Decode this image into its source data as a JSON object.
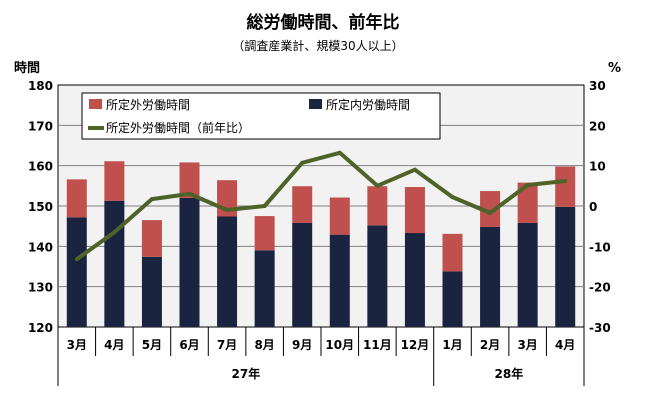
{
  "chart_data": {
    "type": "bar",
    "title": "総労働時間、前年比",
    "subtitle": "（調査産業計、規模30人以上）",
    "ylabel_left": "時間",
    "ylabel_right": "%",
    "ylim_left": [
      120,
      180
    ],
    "yticks_left": [
      "120",
      "130",
      "140",
      "150",
      "160",
      "170",
      "180"
    ],
    "ylim_right": [
      -30,
      30
    ],
    "yticks_right": [
      "-30",
      "-20",
      "-10",
      "0",
      "10",
      "20",
      "30"
    ],
    "grid": true,
    "legend_position": "top",
    "categories": [
      "3月",
      "4月",
      "5月",
      "6月",
      "7月",
      "8月",
      "9月",
      "10月",
      "11月",
      "12月",
      "1月",
      "2月",
      "3月",
      "4月"
    ],
    "year_groups": [
      {
        "label": "27年",
        "count": 10
      },
      {
        "label": "28年",
        "count": 4
      }
    ],
    "series": [
      {
        "name": "所定内労働時間",
        "kind": "bar-stacked-base",
        "color": "#1a2440",
        "values": [
          147.2,
          151.3,
          137.4,
          152.0,
          147.4,
          139.0,
          145.8,
          142.9,
          145.2,
          143.3,
          133.8,
          144.8,
          145.8,
          149.8
        ]
      },
      {
        "name": "所定外労働時間",
        "kind": "bar-stacked-top",
        "color": "#c0504d",
        "values": [
          9.4,
          9.8,
          9.1,
          8.8,
          9.0,
          8.5,
          9.1,
          9.2,
          9.7,
          11.4,
          9.3,
          8.9,
          10.0,
          10.0
        ]
      },
      {
        "name": "所定外労働時間（前年比）",
        "kind": "line-right-axis",
        "color": "#4f6228",
        "values": [
          -13.2,
          -6.5,
          1.7,
          3.0,
          -1.0,
          0.0,
          10.7,
          13.2,
          5.0,
          9.0,
          2.2,
          -1.7,
          5.2,
          6.2
        ]
      }
    ]
  }
}
